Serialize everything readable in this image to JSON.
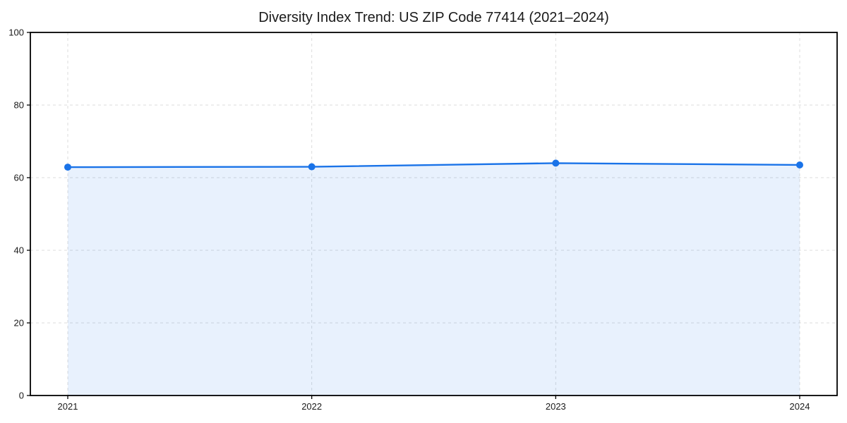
{
  "chart_data": {
    "type": "area",
    "title": "Diversity Index Trend: US ZIP Code 77414 (2021–2024)",
    "x": [
      "2021",
      "2022",
      "2023",
      "2024"
    ],
    "series": [
      {
        "name": "Diversity Index",
        "values": [
          62.9,
          63.0,
          64.0,
          63.5
        ]
      }
    ],
    "xlabel": "",
    "ylabel": "",
    "ylim": [
      0,
      100
    ],
    "yticks": [
      0,
      20,
      40,
      60,
      80,
      100
    ],
    "grid": "dashed-both-axes",
    "legend_position": "none",
    "line_color": "#1a73e8",
    "marker_color": "#1a73e8",
    "fill_color": "rgba(26, 115, 232, 0.10)",
    "grid_color": "#dcdcdc",
    "spine_color": "#000000",
    "text_color": "#1a1a1a",
    "background_color": "#ffffff"
  }
}
